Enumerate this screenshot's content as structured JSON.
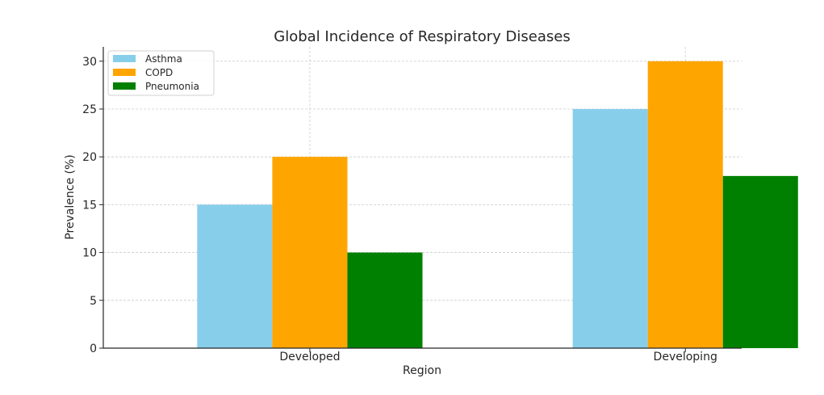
{
  "chart_data": {
    "type": "bar",
    "title": "Global Incidence of Respiratory Diseases",
    "xlabel": "Region",
    "ylabel": "Prevalence (%)",
    "categories": [
      "Developed",
      "Developing"
    ],
    "series": [
      {
        "name": "Asthma",
        "values": [
          15,
          25
        ],
        "color": "#87ceeb"
      },
      {
        "name": "COPD",
        "values": [
          20,
          30
        ],
        "color": "#ffa500"
      },
      {
        "name": "Pneumonia",
        "values": [
          10,
          18
        ],
        "color": "#008000"
      }
    ],
    "ylim": [
      0,
      31.5
    ],
    "yticks": [
      "0",
      "5",
      "10",
      "15",
      "20",
      "25",
      "30"
    ],
    "grid": true,
    "legend_position": "top-left"
  }
}
